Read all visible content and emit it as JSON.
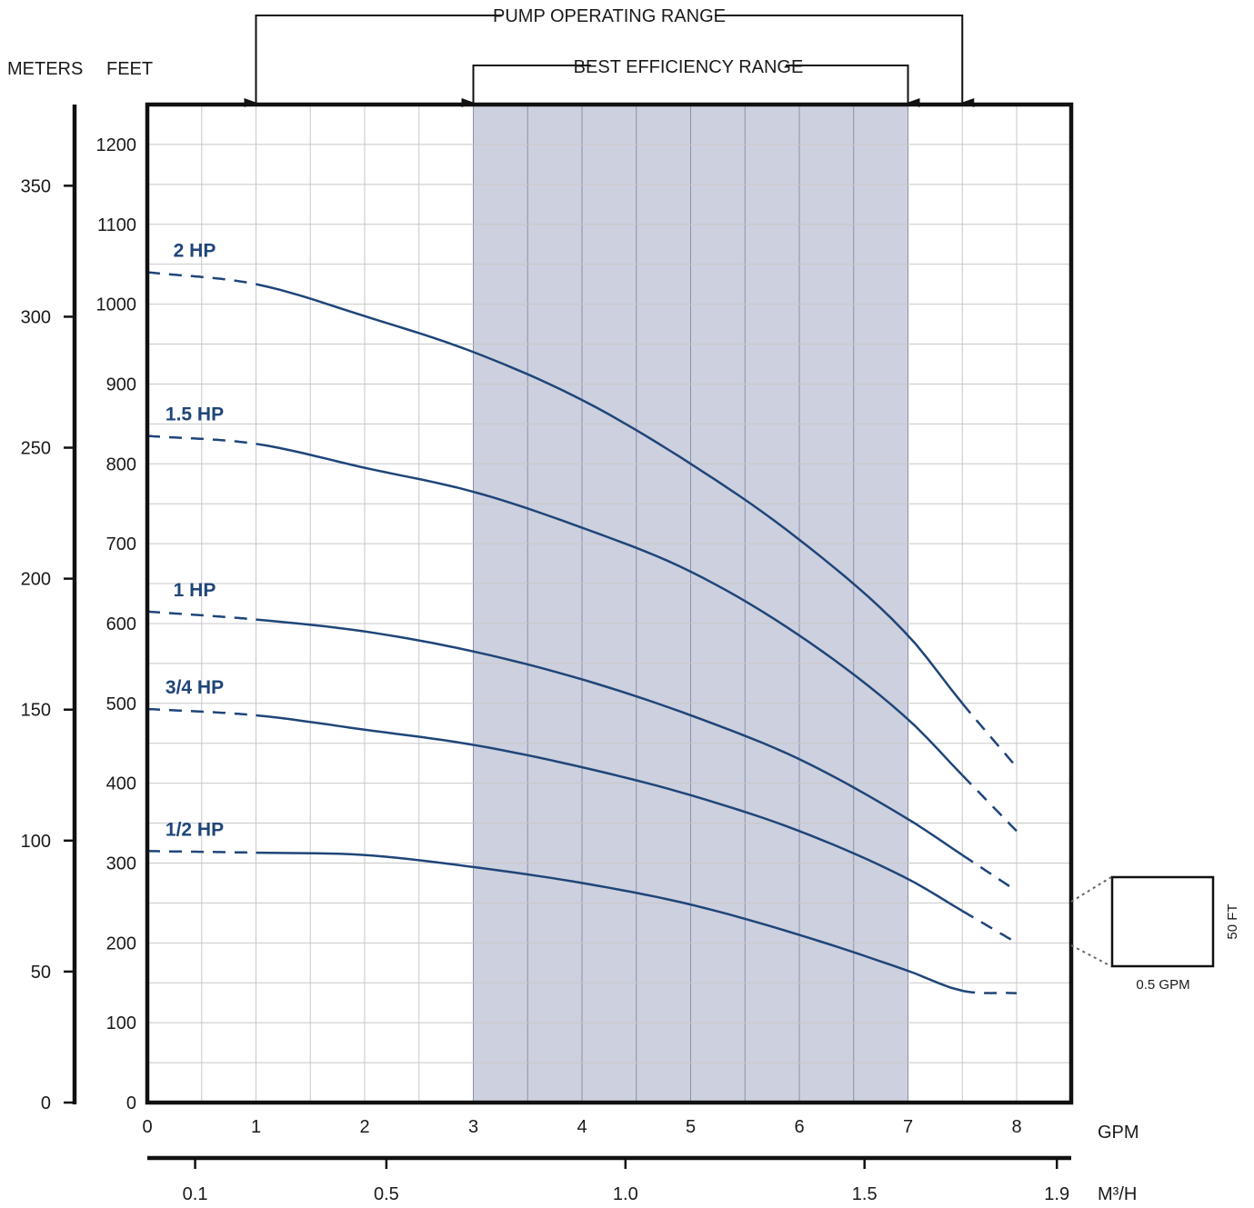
{
  "chart_data": {
    "type": "line",
    "x_label": "GPM",
    "x_ticks": [
      0,
      1,
      2,
      3,
      4,
      5,
      6,
      7,
      8
    ],
    "x_range": [
      0,
      8.5
    ],
    "secondary_x_label": "M³/H",
    "secondary_x_ticks": [
      {
        "label": "0.1",
        "gpm": 0.44
      },
      {
        "label": "0.5",
        "gpm": 2.2
      },
      {
        "label": "1.0",
        "gpm": 4.4
      },
      {
        "label": "1.5",
        "gpm": 6.6
      },
      {
        "label": "1.9",
        "gpm": 8.37
      }
    ],
    "y_label": "FEET",
    "y_ticks": [
      0,
      100,
      200,
      300,
      400,
      500,
      600,
      700,
      800,
      900,
      1000,
      1100,
      1200
    ],
    "y_range": [
      0,
      1250
    ],
    "secondary_y_label": "METERS",
    "secondary_y_ticks": [
      0,
      50,
      100,
      150,
      200,
      250,
      300,
      350
    ],
    "grid": true,
    "operating_range": {
      "label": "PUMP OPERATING RANGE",
      "gpm": [
        1,
        7.5
      ]
    },
    "efficiency_range": {
      "label": "BEST EFFICIENCY RANGE",
      "gpm": [
        3,
        7
      ]
    },
    "shade_color": "#cdd0de",
    "curve_color": "#1f4579",
    "series": [
      {
        "name": "2 HP",
        "x": [
          0,
          1,
          2,
          3,
          4,
          5,
          6,
          7,
          7.5,
          8
        ],
        "y": [
          1040,
          1025,
          985,
          940,
          880,
          800,
          705,
          585,
          500,
          420
        ]
      },
      {
        "name": "1.5 HP",
        "x": [
          0,
          1,
          2,
          3,
          4,
          5,
          6,
          7,
          7.5,
          8
        ],
        "y": [
          835,
          825,
          795,
          765,
          720,
          665,
          585,
          480,
          410,
          340
        ]
      },
      {
        "name": "1 HP",
        "x": [
          0,
          1,
          2,
          3,
          4,
          5,
          6,
          7,
          7.5,
          8
        ],
        "y": [
          615,
          605,
          590,
          565,
          530,
          485,
          430,
          355,
          310,
          265
        ]
      },
      {
        "name": "3/4 HP",
        "x": [
          0,
          1,
          2,
          3,
          4,
          5,
          6,
          7,
          7.5,
          8
        ],
        "y": [
          493,
          485,
          467,
          448,
          420,
          385,
          340,
          280,
          240,
          200
        ]
      },
      {
        "name": "1/2 HP",
        "x": [
          0,
          1,
          2,
          3,
          4,
          5,
          6,
          7,
          7.5,
          8
        ],
        "y": [
          315,
          313,
          310,
          295,
          275,
          248,
          210,
          165,
          140,
          137
        ]
      }
    ],
    "scale_key": {
      "width_label": "0.5 GPM",
      "height_label": "50 FT"
    }
  }
}
